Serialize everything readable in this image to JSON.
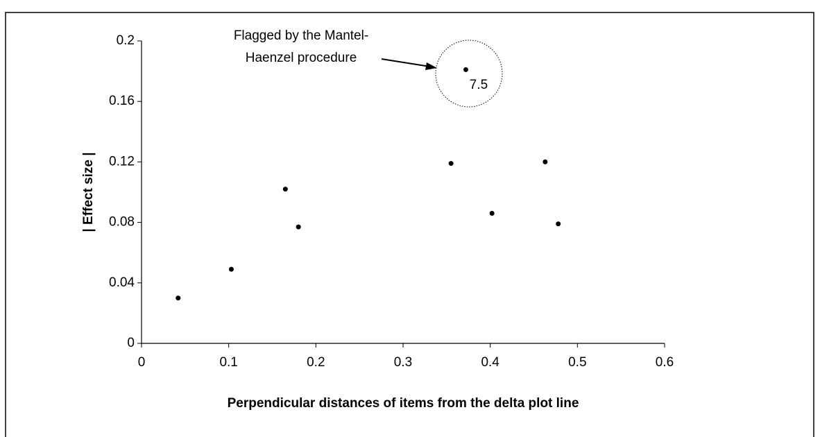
{
  "chart_data": {
    "type": "scatter",
    "x_label": "Perpendicular distances of items from the delta plot line",
    "y_label": "| Effect size |",
    "series": [
      {
        "color": "#000000",
        "x": [
          0.042,
          0.103,
          0.165,
          0.18,
          0.355,
          0.372,
          0.402,
          0.463,
          0.478
        ],
        "values": [
          0.03,
          0.049,
          0.102,
          0.077,
          0.119,
          0.181,
          0.086,
          0.12,
          0.079
        ]
      }
    ],
    "xlim": [
      0,
      0.6
    ],
    "xticks": [
      0,
      0.1,
      0.2,
      0.3,
      0.4,
      0.5,
      0.6
    ],
    "ylim": [
      0,
      0.2
    ],
    "yticks": [
      0,
      0.04,
      0.08,
      0.12,
      0.16,
      0.2
    ],
    "grid": false,
    "annotation": {
      "lines": [
        "Flagged by the Mantel-",
        "Haenzel procedure"
      ],
      "point_label": "7.5"
    }
  }
}
